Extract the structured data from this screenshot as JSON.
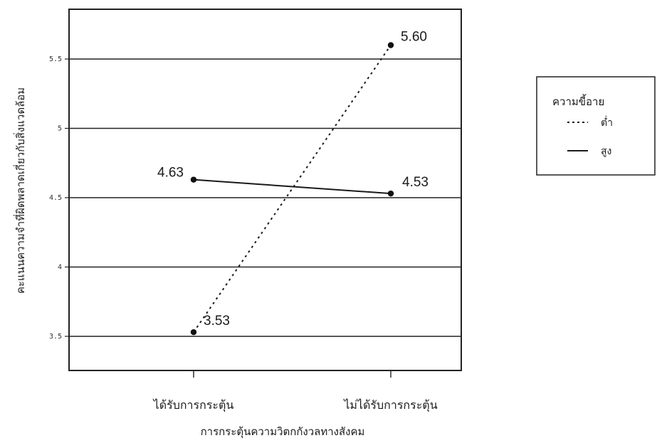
{
  "chart_data": {
    "type": "line",
    "xlabel": "การกระตุ้นความวิตกกังวลทางสังคม",
    "ylabel": "คะแนนความจำที่ผิดพลาดเกี่ยวกับสิ่งแวดล้อม",
    "categories": [
      "ได้รับการกระตุ้น",
      "ไม่ได้รับการกระตุ้น"
    ],
    "ylim": [
      3.3,
      5.85
    ],
    "yticks": [
      3.5,
      4,
      4.5,
      5,
      5.5
    ],
    "ytick_labels": [
      "3.5",
      "4",
      "4.5",
      "5",
      "5.5"
    ],
    "grid": true,
    "legend": {
      "title": "ความขี้อาย",
      "position": "right"
    },
    "series": [
      {
        "name": "ต่ำ",
        "style": "dotted",
        "values": [
          3.53,
          5.6
        ],
        "labels": [
          "3.53",
          "5.60"
        ]
      },
      {
        "name": "สูง",
        "style": "solid",
        "values": [
          4.63,
          4.53
        ],
        "labels": [
          "4.63",
          "4.53"
        ]
      }
    ]
  }
}
